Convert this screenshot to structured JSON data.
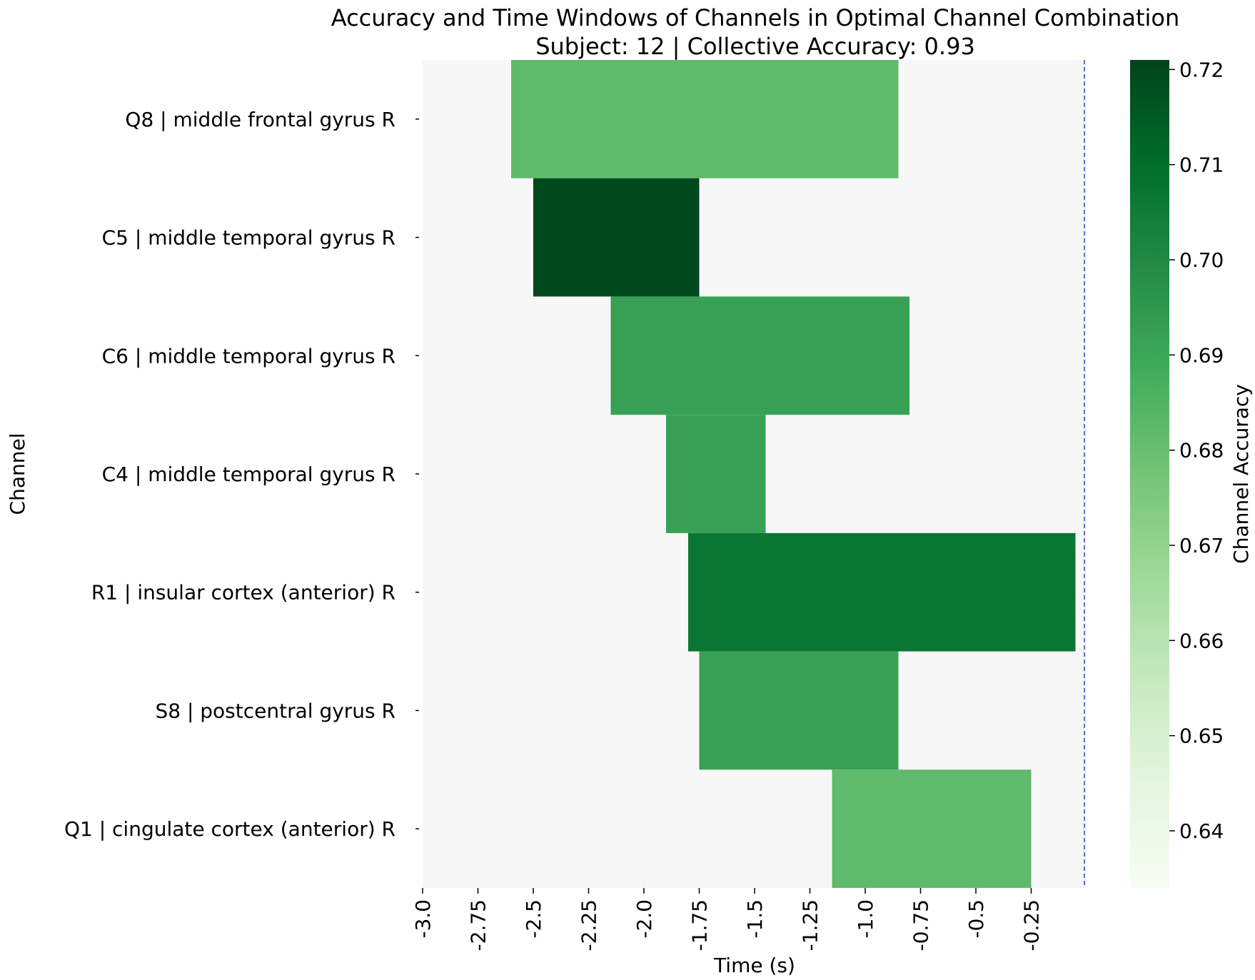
{
  "chart_data": {
    "type": "heatmap",
    "title": "Accuracy and Time Windows of Channels in Optimal Channel Combination",
    "subtitle": "Subject: 12 | Collective Accuracy: 0.93",
    "xlabel": "Time (s)",
    "ylabel": "Channel",
    "colorbar_label": "Channel Accuracy",
    "xlim": [
      -3.0,
      0.0
    ],
    "x_ticks": [
      -3.0,
      -2.75,
      -2.5,
      -2.25,
      -2.0,
      -1.75,
      -1.5,
      -1.25,
      -1.0,
      -0.75,
      -0.5,
      -0.25
    ],
    "x_tick_labels": [
      "-3.0",
      "-2.75",
      "-2.5",
      "-2.25",
      "-2.0",
      "-1.75",
      "-1.5",
      "-1.25",
      "-1.0",
      "-0.75",
      "-0.5",
      "-0.25"
    ],
    "colorbar_range": [
      0.634,
      0.721
    ],
    "colorbar_ticks": [
      0.64,
      0.65,
      0.66,
      0.67,
      0.68,
      0.69,
      0.7,
      0.71,
      0.72
    ],
    "colorbar_tick_labels": [
      "0.64",
      "0.65",
      "0.66",
      "0.67",
      "0.68",
      "0.69",
      "0.70",
      "0.71",
      "0.72"
    ],
    "colormap": "Greens",
    "background_color": "#f7f7f7",
    "reference_line": {
      "x": 0.0,
      "color": "#3344cc",
      "style": "dashed"
    },
    "channels": [
      {
        "label": "Q8 | middle frontal gyrus R",
        "start": -2.6,
        "end": -0.85,
        "accuracy": 0.682
      },
      {
        "label": "C5 | middle temporal gyrus R",
        "start": -2.5,
        "end": -1.75,
        "accuracy": 0.72
      },
      {
        "label": "C6 | middle temporal gyrus R",
        "start": -2.15,
        "end": -0.8,
        "accuracy": 0.692
      },
      {
        "label": "C4 | middle temporal gyrus R",
        "start": -1.9,
        "end": -1.45,
        "accuracy": 0.692
      },
      {
        "label": "R1 | insular cortex (anterior) R",
        "start": -1.8,
        "end": -0.05,
        "accuracy": 0.707
      },
      {
        "label": "S8 | postcentral gyrus R",
        "start": -1.75,
        "end": -0.85,
        "accuracy": 0.692
      },
      {
        "label": "Q1 | cingulate cortex (anterior) R",
        "start": -1.15,
        "end": -0.25,
        "accuracy": 0.682
      }
    ]
  }
}
